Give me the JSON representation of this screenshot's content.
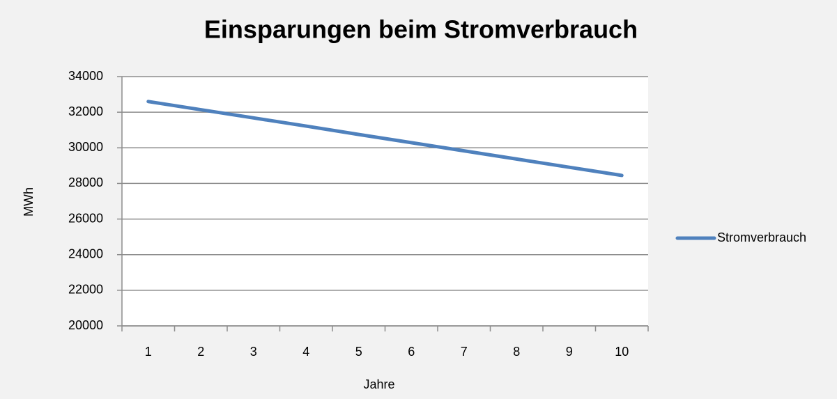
{
  "chart_data": {
    "type": "line",
    "title": "Einsparungen beim Stromverbrauch",
    "x_label": "Jahre",
    "y_label": "MWh",
    "categories": [
      "1",
      "2",
      "3",
      "4",
      "5",
      "6",
      "7",
      "8",
      "9",
      "10"
    ],
    "series": [
      {
        "name": "Stromverbrauch",
        "color": "#4f81bd",
        "values": [
          32600,
          32140,
          31680,
          31220,
          30750,
          30290,
          29830,
          29370,
          28910,
          28450
        ]
      }
    ],
    "ylim": [
      20000,
      34000
    ],
    "yticks": [
      20000,
      22000,
      24000,
      26000,
      28000,
      30000,
      32000,
      34000
    ],
    "grid": true,
    "legend": "right"
  }
}
